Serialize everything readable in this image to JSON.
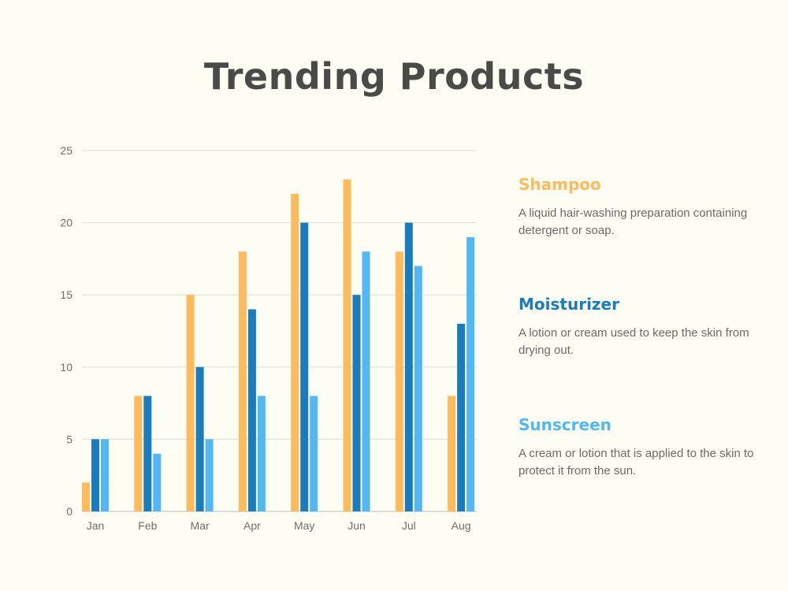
{
  "title": "Trending Products",
  "chart_data": {
    "type": "bar",
    "categories": [
      "Jan",
      "Feb",
      "Mar",
      "Apr",
      "May",
      "Jun",
      "Jul",
      "Aug"
    ],
    "series": [
      {
        "name": "Shampoo",
        "color": "#fdbb5e",
        "values": [
          2,
          8,
          15,
          18,
          22,
          23,
          18,
          8
        ]
      },
      {
        "name": "Moisturizer",
        "color": "#1a7bbd",
        "values": [
          5,
          8,
          10,
          14,
          20,
          15,
          20,
          13
        ]
      },
      {
        "name": "Sunscreen",
        "color": "#52b7f2",
        "values": [
          5,
          4,
          5,
          8,
          8,
          18,
          17,
          19
        ]
      }
    ],
    "yticks": [
      "0",
      "5",
      "10",
      "15",
      "20",
      "25"
    ],
    "ylim": [
      0,
      25
    ],
    "grid": true,
    "legend_position": "right"
  },
  "legend": [
    {
      "name": "Shampoo",
      "color": "#fdbb5e",
      "desc": "A liquid hair-washing preparation containing detergent or soap."
    },
    {
      "name": "Moisturizer",
      "color": "#1a7bbd",
      "desc": "A lotion or cream used to keep the skin from drying out."
    },
    {
      "name": "Sunscreen",
      "color": "#52b7f2",
      "desc": "A cream or lotion that is applied to the skin to protect it from the sun."
    }
  ]
}
